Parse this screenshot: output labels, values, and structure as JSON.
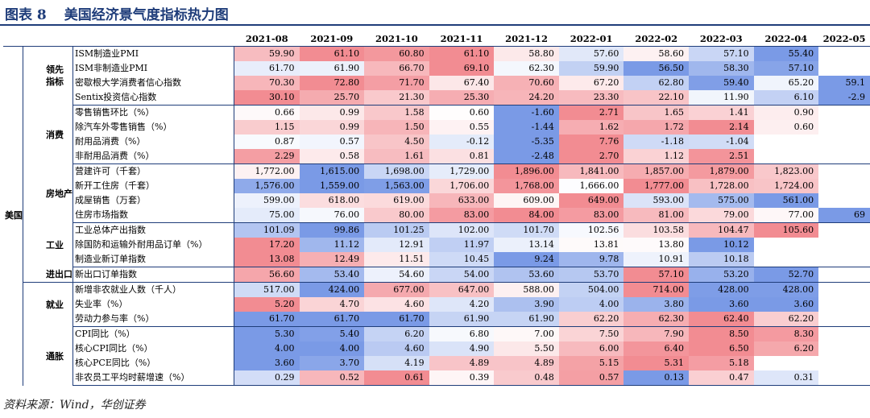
{
  "title": {
    "label": "图表 8",
    "text": "美国经济景气度指标热力图"
  },
  "source": "资料来源：Wind，华创证券",
  "months": [
    "2021-08",
    "2021-09",
    "2021-10",
    "2021-11",
    "2021-12",
    "2022-01",
    "2022-02",
    "2022-03",
    "2022-04",
    "2022-05"
  ],
  "country": "美国",
  "groups": [
    {
      "name": "领先\n指标",
      "rows": [
        {
          "name": "ISM制造业PMI",
          "values": [
            "59.90",
            "61.10",
            "60.80",
            "61.10",
            "58.80",
            "57.60",
            "58.60",
            "57.10",
            "55.40",
            ""
          ]
        },
        {
          "name": "ISM非制造业PMI",
          "values": [
            "61.70",
            "61.90",
            "66.70",
            "69.10",
            "62.30",
            "59.90",
            "56.50",
            "58.30",
            "57.10",
            ""
          ]
        },
        {
          "name": "密歇根大学消费者信心指数",
          "values": [
            "70.30",
            "72.80",
            "71.70",
            "67.40",
            "70.60",
            "67.20",
            "62.80",
            "59.40",
            "65.20",
            "59.1"
          ]
        },
        {
          "name": "Sentix投资信心指数",
          "values": [
            "30.10",
            "25.70",
            "21.30",
            "25.30",
            "24.20",
            "23.30",
            "22.10",
            "11.90",
            "6.10",
            "-2.9"
          ]
        }
      ]
    },
    {
      "name": "消费",
      "rows": [
        {
          "name": "零售销售环比（%）",
          "values": [
            "0.66",
            "0.99",
            "1.58",
            "0.60",
            "-1.60",
            "2.71",
            "1.65",
            "1.41",
            "0.90",
            ""
          ]
        },
        {
          "name": "除汽车外零售销售（%）",
          "values": [
            "1.15",
            "0.99",
            "1.50",
            "0.55",
            "-1.44",
            "1.62",
            "1.72",
            "2.14",
            "0.60",
            ""
          ]
        },
        {
          "name": "耐用品消费（%）",
          "values": [
            "0.87",
            "0.57",
            "4.50",
            "-0.12",
            "-5.35",
            "7.76",
            "-1.18",
            "-1.04",
            "",
            ""
          ]
        },
        {
          "name": "非耐用品消费（%）",
          "values": [
            "2.29",
            "0.58",
            "1.61",
            "0.81",
            "-2.48",
            "2.70",
            "1.12",
            "2.51",
            "",
            ""
          ]
        }
      ]
    },
    {
      "name": "房地产",
      "rows": [
        {
          "name": "营建许可（千套）",
          "values": [
            "1,772.00",
            "1,615.00",
            "1,698.00",
            "1,729.00",
            "1,896.00",
            "1,841.00",
            "1,857.00",
            "1,879.00",
            "1,823.00",
            ""
          ]
        },
        {
          "name": "新开工住房（千套）",
          "values": [
            "1,576.00",
            "1,559.00",
            "1,563.00",
            "1,706.00",
            "1,768.00",
            "1,666.00",
            "1,777.00",
            "1,728.00",
            "1,724.00",
            ""
          ]
        },
        {
          "name": "成屋销售（万套）",
          "values": [
            "599.00",
            "618.00",
            "619.00",
            "633.00",
            "609.00",
            "649.00",
            "593.00",
            "575.00",
            "561.00",
            ""
          ]
        },
        {
          "name": "住房市场指数",
          "values": [
            "75.00",
            "76.00",
            "80.00",
            "83.00",
            "84.00",
            "83.00",
            "81.00",
            "79.00",
            "77.00",
            "69"
          ]
        }
      ]
    },
    {
      "name": "工业",
      "rows": [
        {
          "name": "工业总体产出指数",
          "values": [
            "101.09",
            "99.86",
            "101.25",
            "102.00",
            "101.70",
            "102.56",
            "103.58",
            "104.47",
            "105.60",
            ""
          ]
        },
        {
          "name": "除国防和运输外耐用品订单（%）",
          "values": [
            "17.20",
            "11.12",
            "12.91",
            "11.97",
            "13.14",
            "13.81",
            "13.80",
            "10.12",
            "",
            ""
          ]
        },
        {
          "name": "制造业新订单指数",
          "values": [
            "13.08",
            "12.49",
            "11.51",
            "10.45",
            "9.24",
            "9.78",
            "10.91",
            "10.18",
            "",
            ""
          ]
        }
      ]
    },
    {
      "name": "进出口",
      "rows": [
        {
          "name": "新出口订单指数",
          "values": [
            "56.60",
            "53.40",
            "54.60",
            "54.00",
            "53.60",
            "53.70",
            "57.10",
            "53.20",
            "52.70",
            ""
          ]
        }
      ]
    },
    {
      "name": "就业",
      "rows": [
        {
          "name": "新增非农就业人数（千人）",
          "values": [
            "517.00",
            "424.00",
            "677.00",
            "647.00",
            "588.00",
            "504.00",
            "714.00",
            "428.00",
            "428.00",
            ""
          ]
        },
        {
          "name": "失业率（%）",
          "values": [
            "5.20",
            "4.70",
            "4.60",
            "4.20",
            "3.90",
            "4.00",
            "3.80",
            "3.60",
            "3.60",
            ""
          ]
        },
        {
          "name": "劳动力参与率（%）",
          "values": [
            "61.70",
            "61.70",
            "61.70",
            "61.90",
            "61.90",
            "62.20",
            "62.30",
            "62.40",
            "62.20",
            ""
          ]
        }
      ]
    },
    {
      "name": "通胀",
      "rows": [
        {
          "name": "CPI同比（%）",
          "values": [
            "5.30",
            "5.40",
            "6.20",
            "6.80",
            "7.00",
            "7.50",
            "7.90",
            "8.50",
            "8.30",
            ""
          ]
        },
        {
          "name": "核心CPI同比（%）",
          "values": [
            "4.00",
            "4.00",
            "4.60",
            "4.90",
            "5.50",
            "6.00",
            "6.40",
            "6.50",
            "6.20",
            ""
          ]
        },
        {
          "name": "核心PCE同比（%）",
          "values": [
            "3.60",
            "3.70",
            "4.19",
            "4.89",
            "4.89",
            "5.15",
            "5.31",
            "5.18",
            "",
            ""
          ]
        },
        {
          "name": "非农员工平均时薪增速（%）",
          "values": [
            "0.29",
            "0.52",
            "0.61",
            "0.39",
            "0.48",
            "0.57",
            "0.13",
            "0.47",
            "0.31",
            ""
          ]
        }
      ]
    }
  ],
  "colors": {
    "red": "#f28c92",
    "white": "#ffffff",
    "blue": "#7a9ae6",
    "accent": "#1f3d7a"
  }
}
